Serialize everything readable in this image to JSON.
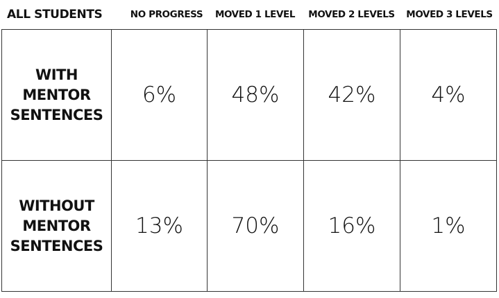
{
  "table": {
    "header": [
      "ALL STUDENTS",
      "NO PROGRESS",
      "MOVED 1 LEVEL",
      "MOVED 2 LEVELS",
      "MOVED 3 LEVELS"
    ],
    "rows": [
      [
        "WITH\nMENTOR\nSENTENCES",
        "6%",
        "48%",
        "42%",
        "4%"
      ],
      [
        "WITHOUT\nMENTOR\nSENTENCES",
        "13%",
        "70%",
        "16%",
        "1%"
      ]
    ]
  }
}
